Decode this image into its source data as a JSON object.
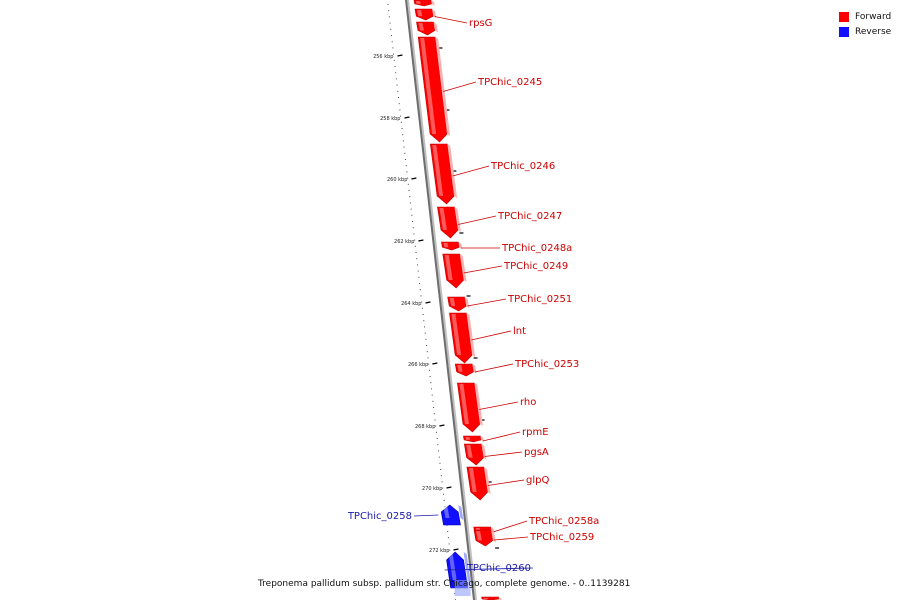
{
  "legend": {
    "items": [
      {
        "label": "Forward",
        "color": "#ff0000"
      },
      {
        "label": "Reverse",
        "color": "#1010ff"
      }
    ]
  },
  "caption": "Treponema pallidum subsp. pallidum str. Chicago, complete genome. - 0..1139281",
  "ticks": [
    {
      "label": "256 kbp"
    },
    {
      "label": "258 kbp"
    },
    {
      "label": "260 kbp"
    },
    {
      "label": "262 kbp"
    },
    {
      "label": "264 kbp"
    },
    {
      "label": "266 kbp"
    },
    {
      "label": "268 kbp"
    },
    {
      "label": "270 kbp"
    },
    {
      "label": "272 kbp"
    }
  ],
  "genes": [
    {
      "name": "",
      "strand": "forward"
    },
    {
      "name": "rpsG",
      "strand": "forward"
    },
    {
      "name": "TPChic_0245",
      "strand": "forward"
    },
    {
      "name": "TPChic_0246",
      "strand": "forward"
    },
    {
      "name": "TPChic_0247",
      "strand": "forward"
    },
    {
      "name": "TPChic_0248a",
      "strand": "forward"
    },
    {
      "name": "TPChic_0249",
      "strand": "forward"
    },
    {
      "name": "TPChic_0251",
      "strand": "forward"
    },
    {
      "name": "lnt",
      "strand": "forward"
    },
    {
      "name": "TPChic_0253",
      "strand": "forward"
    },
    {
      "name": "rho",
      "strand": "forward"
    },
    {
      "name": "rpmE",
      "strand": "forward"
    },
    {
      "name": "pgsA",
      "strand": "forward"
    },
    {
      "name": "glpQ",
      "strand": "forward"
    },
    {
      "name": "TPChic_0258",
      "strand": "reverse"
    },
    {
      "name": "TPChic_0258a",
      "strand": "forward"
    },
    {
      "name": "TPChic_0259",
      "strand": "forward"
    },
    {
      "name": "TPChic_0260",
      "strand": "reverse"
    },
    {
      "name": "",
      "strand": "forward"
    }
  ]
}
